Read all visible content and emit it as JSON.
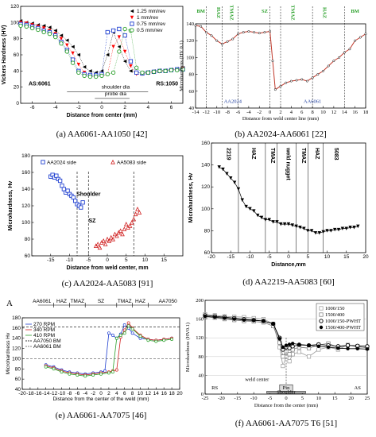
{
  "chart_data": [
    {
      "type": "scatter",
      "panel": "a",
      "caption": "(a) AA6061-AA1050 [42]",
      "xlabel": "Distance from center (mm)",
      "ylabel": "Vickers Hardness (HV)",
      "xlim": [
        -7,
        7
      ],
      "ylim": [
        0,
        120
      ],
      "xticks": [
        -6,
        -4,
        -2,
        0,
        2,
        4,
        6
      ],
      "yticks": [
        0,
        20,
        40,
        60,
        80,
        100,
        120
      ],
      "annotations": [
        "AS:6061",
        "RS:1050",
        "shoulder dia",
        "probe dia"
      ],
      "series": [
        {
          "name": "1.25 mm/rev",
          "color": "#000000",
          "marker": "tri-left",
          "x": [
            -7,
            -6.5,
            -6,
            -5.5,
            -5,
            -4.5,
            -4,
            -3.5,
            -3,
            -2.5,
            -2,
            -1.5,
            -1,
            -0.5,
            0,
            0.5,
            1,
            1.5,
            2,
            2.5,
            3,
            3.5,
            4,
            4.5,
            5,
            5.5,
            6,
            6.5,
            7
          ],
          "y": [
            102,
            100,
            99,
            97,
            96,
            94,
            90,
            84,
            78,
            70,
            60,
            45,
            40,
            38,
            40,
            60,
            88,
            70,
            52,
            40,
            38,
            38,
            39,
            40,
            41,
            41,
            42,
            43,
            44
          ]
        },
        {
          "name": "1 mm/rev",
          "color": "#ff0000",
          "marker": "tri-down",
          "x": [
            -7,
            -6.5,
            -6,
            -5.5,
            -5,
            -4.5,
            -4,
            -3.5,
            -3,
            -2.5,
            -2,
            -1.5,
            -1,
            -0.5,
            0,
            0.5,
            1,
            1.5,
            2,
            2.5,
            3,
            3.5,
            4,
            4.5,
            5,
            5.5,
            6,
            6.5,
            7
          ],
          "y": [
            100,
            99,
            97,
            95,
            93,
            90,
            86,
            80,
            72,
            62,
            48,
            38,
            34,
            33,
            34,
            36,
            70,
            82,
            64,
            46,
            36,
            36,
            37,
            38,
            39,
            40,
            41,
            42,
            43
          ]
        },
        {
          "name": "0.75 mm/rev",
          "color": "#1f3fd0",
          "marker": "square",
          "x": [
            -7,
            -6.5,
            -6,
            -5.5,
            -5,
            -4.5,
            -4,
            -3.5,
            -3,
            -2.5,
            -2,
            -1.5,
            -1,
            -0.5,
            0,
            0.5,
            1,
            1.5,
            2,
            2.5,
            3,
            3.5,
            4,
            4.5,
            5,
            5.5,
            6,
            6.5,
            7
          ],
          "y": [
            98,
            97,
            95,
            93,
            90,
            88,
            84,
            76,
            66,
            54,
            40,
            36,
            35,
            35,
            36,
            88,
            90,
            92,
            84,
            52,
            38,
            37,
            38,
            39,
            40,
            40,
            41,
            42,
            42
          ]
        },
        {
          "name": "0.5 mm/rev",
          "color": "#2aa02a",
          "marker": "circle",
          "x": [
            -7,
            -6.5,
            -6,
            -5.5,
            -5,
            -4.5,
            -4,
            -3.5,
            -3,
            -2.5,
            -2,
            -1.5,
            -1,
            -0.5,
            0,
            0.5,
            1,
            1.5,
            2,
            2.5,
            3,
            3.5,
            4,
            4.5,
            5,
            5.5,
            6,
            6.5,
            7
          ],
          "y": [
            96,
            95,
            93,
            91,
            88,
            86,
            82,
            74,
            64,
            50,
            38,
            34,
            33,
            33,
            34,
            36,
            38,
            64,
            92,
            90,
            44,
            38,
            38,
            39,
            40,
            40,
            41,
            41,
            42
          ]
        }
      ]
    },
    {
      "type": "line",
      "panel": "b",
      "caption": "(b) AA2024-AA6061 [22]",
      "xlabel": "Distance from weld center line (mm)",
      "ylabel": "Microhardness (HV 0.1)",
      "xlim": [
        -14,
        18
      ],
      "ylim": [
        40,
        140
      ],
      "xticks": [
        -14,
        -12,
        -10,
        -8,
        -6,
        -4,
        -2,
        0,
        2,
        4,
        6,
        8,
        10,
        12,
        14,
        16,
        18
      ],
      "yticks": [
        40,
        60,
        80,
        100,
        120,
        140
      ],
      "zones": [
        "BM",
        "HAZ",
        "TMAZ",
        "SZ",
        "TMAZ",
        "HAZ",
        "BM"
      ],
      "materials": [
        "AA2024",
        "AA6061"
      ],
      "series": [
        {
          "name": "",
          "x": [
            -14,
            -13,
            -12,
            -11,
            -10,
            -9,
            -8,
            -7,
            -6,
            -5,
            -4,
            -3,
            -2,
            -1,
            0,
            0.5,
            1,
            2,
            3,
            4,
            5,
            6,
            7,
            8,
            9,
            10,
            11,
            12,
            13,
            14,
            15,
            16,
            17,
            18
          ],
          "y": [
            138,
            137,
            130,
            126,
            120,
            116,
            119,
            122,
            128,
            130,
            131,
            130,
            129,
            130,
            131,
            96,
            62,
            66,
            70,
            72,
            73,
            74,
            72,
            76,
            80,
            84,
            90,
            96,
            100,
            106,
            110,
            120,
            124,
            128
          ]
        }
      ]
    },
    {
      "type": "scatter",
      "panel": "c",
      "caption": "(c) AA2024-AA5083 [91]",
      "xlabel": "Distance from weld center, mm",
      "ylabel": "Microhardness, Hv",
      "xlim": [
        -20,
        20
      ],
      "ylim": [
        60,
        180
      ],
      "xticks": [
        -15,
        -10,
        -5,
        0,
        5,
        10,
        15
      ],
      "yticks": [
        60,
        80,
        100,
        120,
        140,
        160,
        180
      ],
      "annotations": [
        "Shoulder",
        "SZ"
      ],
      "series": [
        {
          "name": "AA2024 side",
          "marker": "square",
          "x": [
            -15,
            -14.5,
            -14,
            -13.5,
            -13,
            -12.5,
            -12,
            -11.5,
            -11,
            -10.5,
            -10,
            -9.5,
            -9,
            -8.5,
            -8,
            -7.5,
            -7,
            -6.5
          ],
          "y": [
            155,
            157,
            154,
            156,
            152,
            150,
            144,
            140,
            136,
            138,
            134,
            132,
            130,
            126,
            122,
            120,
            118,
            124
          ]
        },
        {
          "name": "AA5083 side",
          "marker": "triangle",
          "x": [
            -3,
            -2.5,
            -2,
            -1.5,
            -1,
            -0.5,
            0,
            0.5,
            1,
            1.5,
            2,
            2.5,
            3,
            3.5,
            4,
            4.5,
            5,
            5.5,
            6,
            6.5,
            7,
            7.5,
            8,
            8.5
          ],
          "y": [
            72,
            74,
            70,
            76,
            78,
            74,
            80,
            78,
            82,
            80,
            86,
            84,
            88,
            90,
            86,
            92,
            98,
            94,
            96,
            100,
            104,
            110,
            116,
            112
          ]
        }
      ]
    },
    {
      "type": "line",
      "panel": "d",
      "caption": "(d) AA2219-AA5083 [60]",
      "xlabel": "Distance,mm",
      "ylabel": "Microhardness, Hv",
      "xlim": [
        -20,
        20
      ],
      "ylim": [
        60,
        160
      ],
      "xticks": [
        -20,
        -15,
        -10,
        -5,
        0,
        5,
        10,
        15,
        20
      ],
      "yticks": [
        60,
        80,
        100,
        120,
        140,
        160
      ],
      "zones": [
        "2219",
        "HAZ",
        "TMAZ",
        "weld nugget",
        "TMAZ",
        "HAZ",
        "5083"
      ],
      "series": [
        {
          "name": "",
          "marker": "tri-down",
          "x": [
            -18,
            -17,
            -16,
            -15,
            -14,
            -13,
            -12,
            -11,
            -10,
            -9,
            -8,
            -7,
            -6,
            -5,
            -4,
            -3,
            -2,
            -1,
            0,
            1,
            2,
            3,
            4,
            5,
            6,
            7,
            8,
            9,
            10,
            11,
            12,
            13,
            14,
            15,
            16,
            17,
            18
          ],
          "y": [
            138,
            136,
            132,
            128,
            124,
            118,
            108,
            102,
            100,
            98,
            94,
            92,
            90,
            90,
            88,
            88,
            86,
            86,
            86,
            85,
            84,
            83,
            82,
            80,
            80,
            78,
            78,
            79,
            80,
            80,
            81,
            81,
            82,
            82,
            83,
            83,
            84
          ]
        }
      ]
    },
    {
      "type": "line",
      "panel": "e",
      "caption": "(e) AA6061-AA7075 [46]",
      "xlabel": "Distance from the center of the weld (mm)",
      "ylabel": "Microhardness Hv",
      "xlim": [
        -20,
        20
      ],
      "ylim": [
        40,
        180
      ],
      "xticks": [
        -20,
        -18,
        -16,
        -14,
        -12,
        -10,
        -8,
        -6,
        -4,
        -2,
        0,
        2,
        4,
        6,
        8,
        10,
        12,
        14,
        16,
        18,
        20
      ],
      "yticks": [
        40,
        60,
        80,
        100,
        120,
        140,
        160,
        180
      ],
      "panel_label": "A",
      "zones": [
        "AA6061",
        "HAZ",
        "TMAZ",
        "SZ",
        "TMAZ",
        "HAZ",
        "AA7050"
      ],
      "series": [
        {
          "name": "270 RPM",
          "color": "#1f3fd0",
          "x": [
            -14,
            -12,
            -10,
            -8,
            -6,
            -4,
            -2,
            0,
            1,
            2,
            3,
            4,
            5,
            6,
            7,
            8,
            10,
            12,
            14,
            16,
            18
          ],
          "y": [
            88,
            84,
            78,
            74,
            72,
            70,
            72,
            74,
            76,
            150,
            146,
            140,
            148,
            166,
            160,
            150,
            140,
            138,
            136,
            138,
            140
          ]
        },
        {
          "name": "340 RPM",
          "color": "#d02020",
          "x": [
            -14,
            -12,
            -10,
            -8,
            -6,
            -4,
            -2,
            0,
            2,
            3,
            4,
            5,
            6,
            7,
            8,
            10,
            12,
            14,
            16,
            18
          ],
          "y": [
            86,
            82,
            76,
            72,
            70,
            68,
            70,
            72,
            74,
            76,
            78,
            142,
            156,
            170,
            160,
            146,
            138,
            136,
            138,
            140
          ]
        },
        {
          "name": "410 RPM",
          "color": "#2aa02a",
          "x": [
            -14,
            -12,
            -10,
            -8,
            -6,
            -4,
            -2,
            0,
            2,
            3,
            4,
            5,
            6,
            7,
            8,
            10,
            12,
            14,
            16,
            18
          ],
          "y": [
            84,
            80,
            74,
            70,
            68,
            66,
            68,
            70,
            72,
            74,
            140,
            146,
            150,
            164,
            158,
            144,
            136,
            134,
            136,
            138
          ]
        },
        {
          "name": "AA7050 BM",
          "color": "#000000",
          "dashed": true,
          "y_const": 162
        },
        {
          "name": "AA6061 BM",
          "color": "#555555",
          "dashed": true,
          "y_const": 100
        }
      ]
    },
    {
      "type": "line",
      "panel": "f",
      "caption": "(f) AA6061-AA7075 T6 [51]",
      "xlabel": "Distance from the center (mm)",
      "ylabel": "Microhardness (HV0.1)",
      "xlim": [
        -25,
        25
      ],
      "ylim": [
        0,
        200
      ],
      "xticks": [
        -25,
        -20,
        -15,
        -10,
        -5,
        0,
        5,
        10,
        15,
        20,
        25
      ],
      "yticks": [
        0,
        40,
        80,
        120,
        160,
        200
      ],
      "annotations": [
        "weld center",
        "Pin",
        "Shoulder",
        "RS",
        "AS"
      ],
      "series": [
        {
          "name": "1000/150",
          "marker": "open-square",
          "color": "#999999",
          "x": [
            -25,
            -22,
            -19,
            -16,
            -13,
            -10,
            -7,
            -4,
            -2,
            -1,
            0,
            1,
            2,
            4,
            7,
            10,
            13,
            16,
            19,
            22,
            25
          ],
          "y": [
            170,
            168,
            166,
            165,
            164,
            162,
            160,
            150,
            100,
            60,
            80,
            70,
            85,
            90,
            80,
            95,
            100,
            95,
            105,
            100,
            100
          ]
        },
        {
          "name": "1500/400",
          "marker": "open-square",
          "color": "#777777",
          "x": [
            -25,
            -22,
            -19,
            -16,
            -13,
            -10,
            -7,
            -4,
            -2,
            -1,
            0,
            1,
            2,
            4,
            7,
            10,
            13,
            16,
            19,
            22,
            25
          ],
          "y": [
            165,
            163,
            160,
            158,
            156,
            155,
            153,
            145,
            110,
            80,
            90,
            85,
            95,
            100,
            98,
            105,
            108,
            100,
            104,
            102,
            98
          ]
        },
        {
          "name": "1000/150-PWHT",
          "marker": "open-circle",
          "color": "#000000",
          "x": [
            -25,
            -22,
            -19,
            -16,
            -13,
            -10,
            -7,
            -4,
            -2,
            -1,
            0,
            1,
            2,
            4,
            7,
            10,
            13,
            16,
            19,
            22,
            25
          ],
          "y": [
            168,
            166,
            164,
            162,
            160,
            158,
            156,
            150,
            120,
            95,
            100,
            98,
            102,
            105,
            104,
            106,
            104,
            102,
            104,
            103,
            102
          ]
        },
        {
          "name": "1500/400-PWHT",
          "marker": "filled-circle",
          "color": "#000000",
          "x": [
            -25,
            -22,
            -19,
            -16,
            -13,
            -10,
            -7,
            -4,
            -2,
            -1,
            0,
            1,
            2,
            4,
            7,
            10,
            13,
            16,
            19,
            22,
            25
          ],
          "y": [
            166,
            164,
            162,
            160,
            158,
            157,
            156,
            150,
            118,
            100,
            104,
            106,
            108,
            106,
            104,
            102,
            100,
            98,
            97,
            97,
            96
          ]
        }
      ]
    }
  ]
}
